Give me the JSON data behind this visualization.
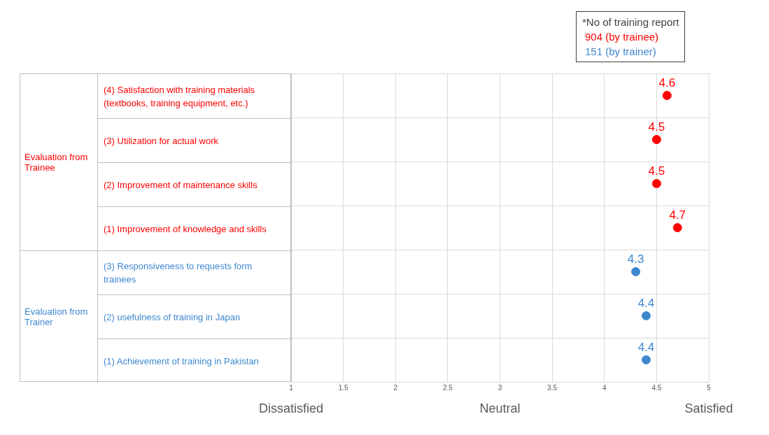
{
  "chart_data": {
    "type": "scatter",
    "categories": [
      "(4) Satisfaction with training materials (textbooks, training equipment, etc.)",
      "(3) Utilization for actual work",
      "(2) Improvement of maintenance skills",
      "(1) Improvement of knowledge and skills",
      "(3) Responsiveness  to requests form trainees",
      "(2) usefulness of training in Japan",
      "(1) Achievement of training in Pakistan"
    ],
    "orientation": "horizontal",
    "series": [
      {
        "name": "904 (by trainee)",
        "color": "#ff0000",
        "values": [
          4.6,
          4.5,
          4.5,
          4.7,
          null,
          null,
          null
        ]
      },
      {
        "name": "151 (by trainer)",
        "color": "#3f88d0",
        "values": [
          null,
          null,
          null,
          null,
          4.3,
          4.4,
          4.4
        ]
      }
    ],
    "legend_title": "*No of training report",
    "legend": "top right",
    "xlim": [
      1,
      5
    ],
    "xticks": [
      1,
      1.5,
      2,
      2.5,
      3,
      3.5,
      4,
      4.5,
      5
    ],
    "grid": true,
    "marker": "circle",
    "data_labels": true,
    "annotations": [
      "Evaluation from Trainee",
      "Evaluation from Trainer",
      "Dissatisfied",
      "Neutral",
      "Satisfied"
    ]
  }
}
